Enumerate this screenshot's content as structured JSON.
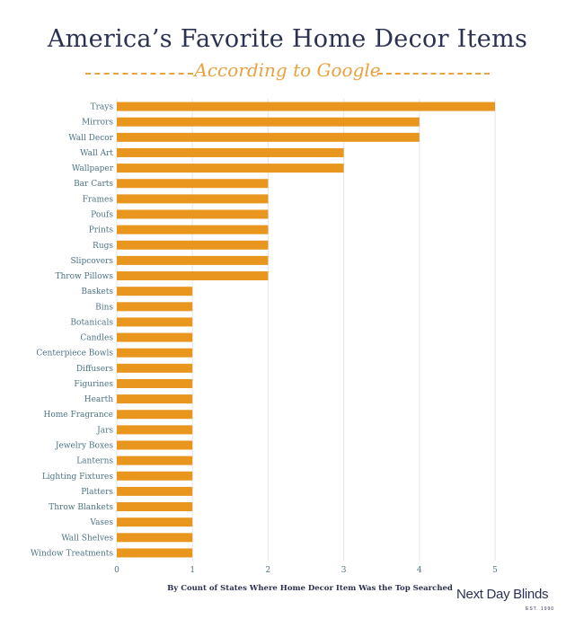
{
  "chart_data": {
    "type": "bar",
    "orientation": "horizontal",
    "title": "America’s Favorite Home Decor Items",
    "subtitle": "According to Google",
    "xlabel": "By Count of States Where Home Decor Item Was the Top Searched",
    "ylabel": "",
    "xlim": [
      0,
      5
    ],
    "x_ticks": [
      "0",
      "1",
      "2",
      "3",
      "4",
      "5"
    ],
    "grid": "vertical",
    "bar_color": "#e8961e",
    "categories": [
      "Trays",
      "Mirrors",
      "Wall Decor",
      "Wall Art",
      "Wallpaper",
      "Bar Carts",
      "Frames",
      "Poufs",
      "Prints",
      "Rugs",
      "Slipcovers",
      "Throw Pillows",
      "Baskets",
      "Bins",
      "Botanicals",
      "Candles",
      "Centerpiece Bowls",
      "Diffusers",
      "Figurines",
      "Hearth",
      "Home Fragrance",
      "Jars",
      "Jewelry Boxes",
      "Lanterns",
      "Lighting Fixtures",
      "Platters",
      "Throw Blankets",
      "Vases",
      "Wall Shelves",
      "Window Treatments"
    ],
    "values": [
      5,
      4,
      4,
      3,
      3,
      2,
      2,
      2,
      2,
      2,
      2,
      2,
      1,
      1,
      1,
      1,
      1,
      1,
      1,
      1,
      1,
      1,
      1,
      1,
      1,
      1,
      1,
      1,
      1,
      1
    ]
  },
  "brand": {
    "name": "Next Day Blinds",
    "tagline": "EST. 1990"
  },
  "colors": {
    "title": "#2b3151",
    "accent": "#e8a23f",
    "label": "#4e7383"
  }
}
